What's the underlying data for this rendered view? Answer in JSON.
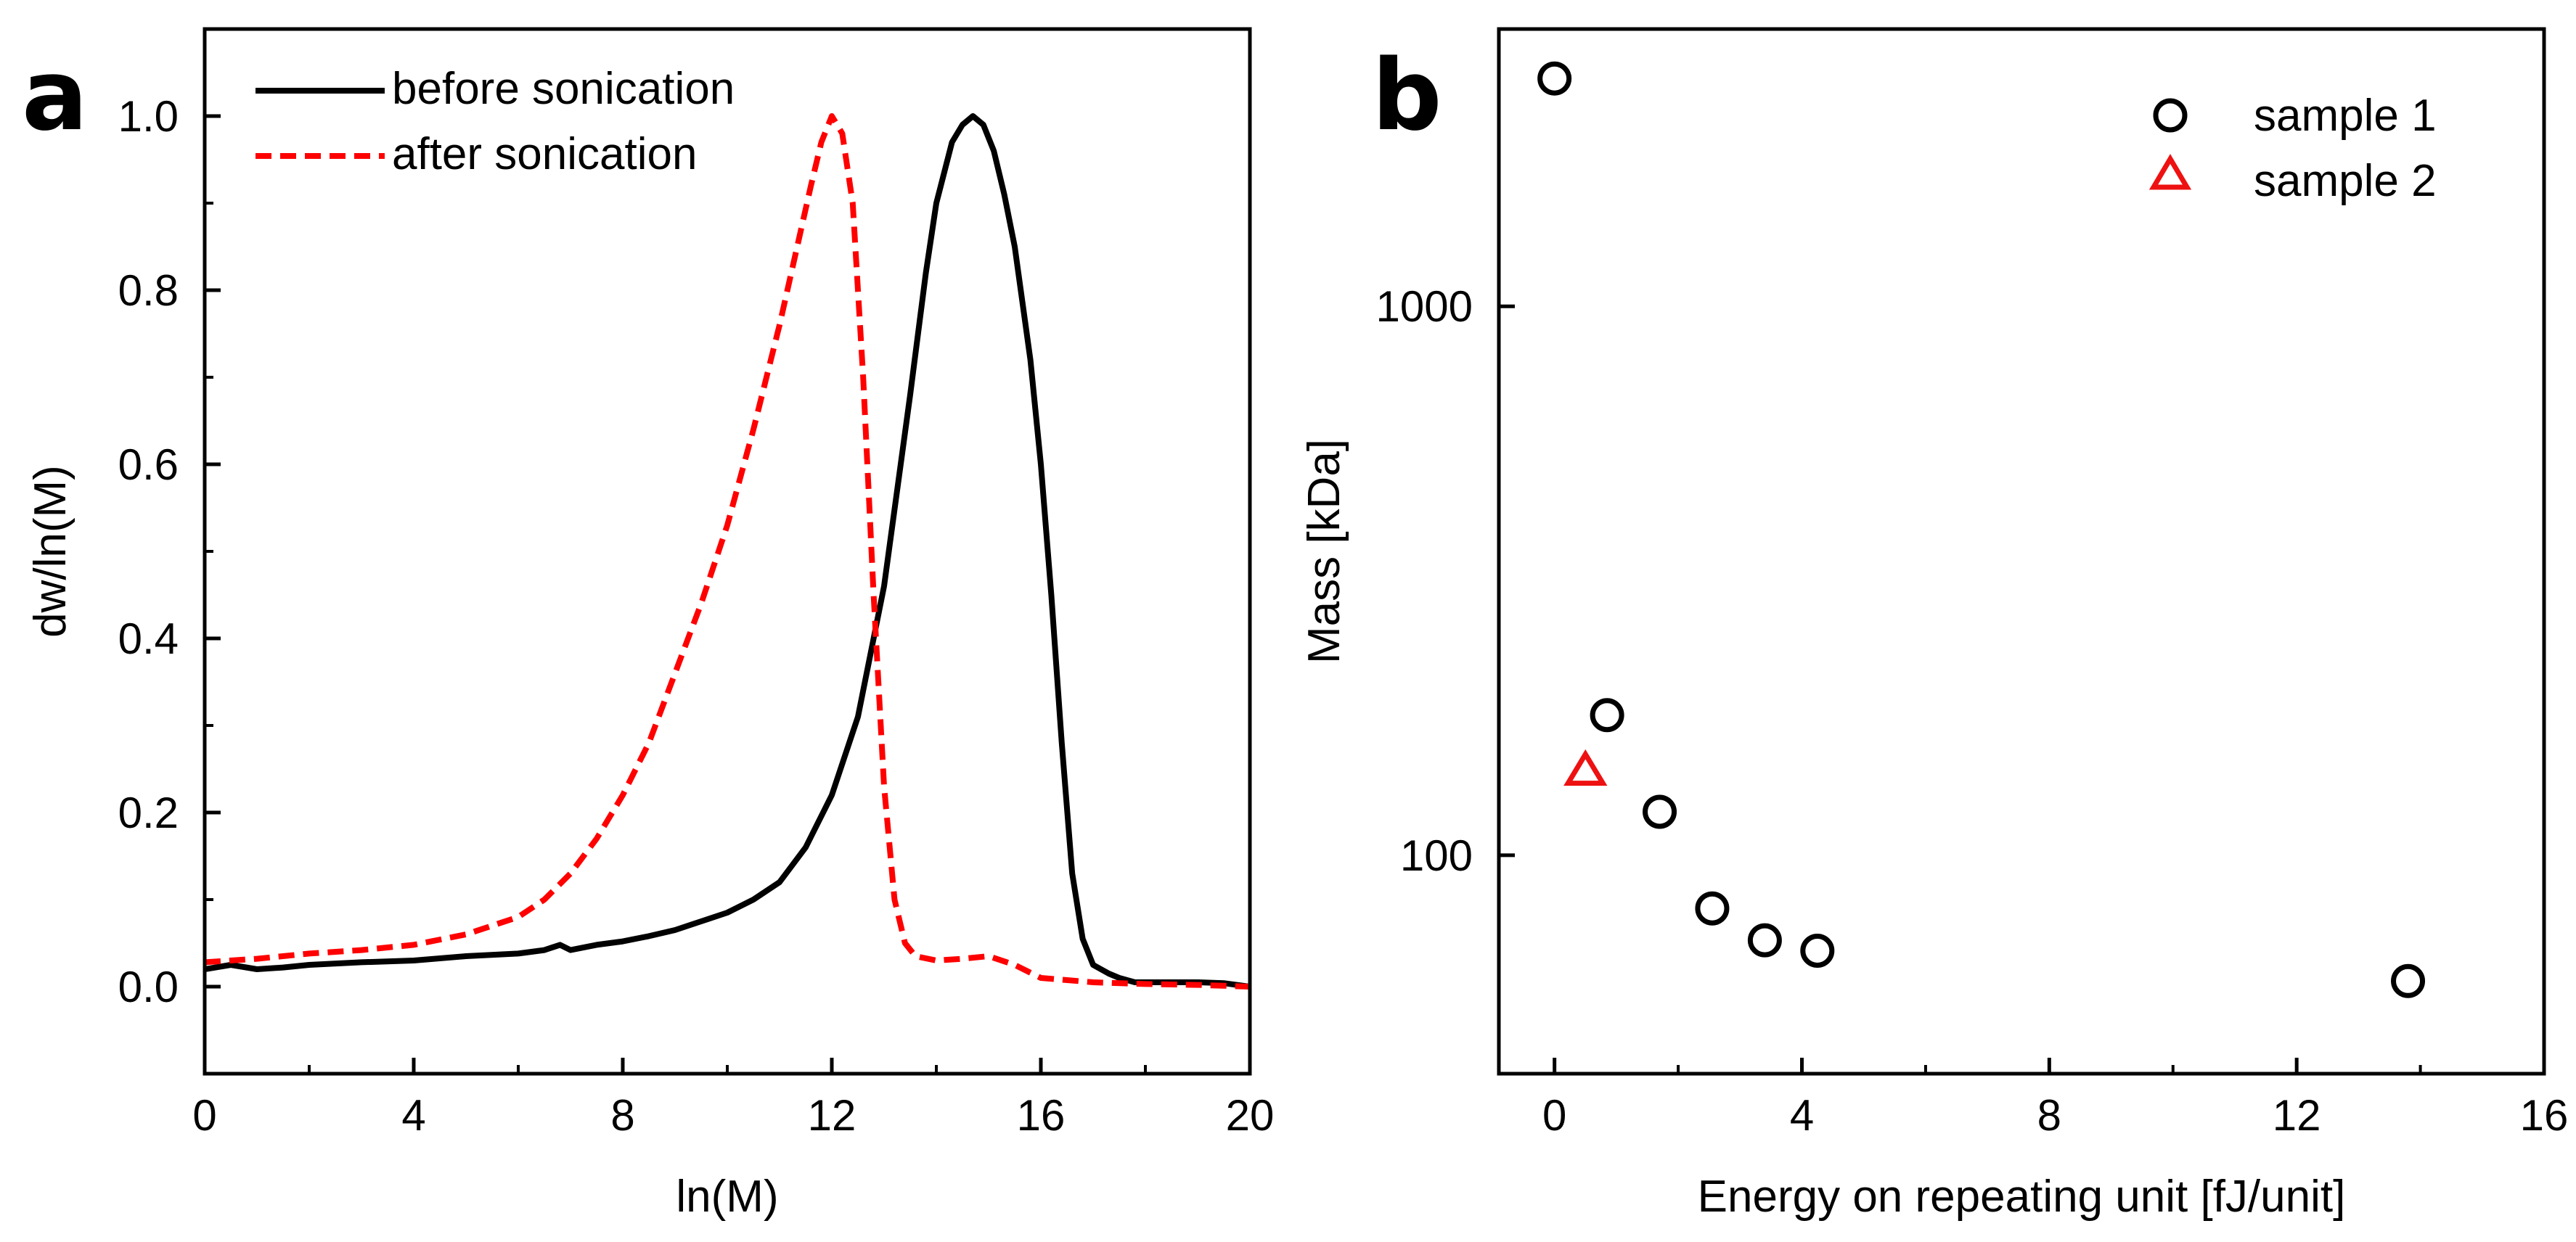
{
  "colors": {
    "axis": "#000000",
    "before": "#000000",
    "after": "#ff0000",
    "sample1": "#000000",
    "sample2": "#ee1111"
  },
  "chart_data": [
    {
      "panel": "a",
      "type": "line",
      "xlabel": "ln(M)",
      "ylabel": "dw/ln(M)",
      "xlim": [
        0,
        20
      ],
      "ylim": [
        -0.1,
        1.1
      ],
      "xticks": [
        0,
        4,
        8,
        12,
        16,
        20
      ],
      "xtick_labels": [
        "0",
        "4",
        "8",
        "12",
        "16",
        "20"
      ],
      "yticks": [
        0.0,
        0.2,
        0.4,
        0.6,
        0.8,
        1.0
      ],
      "ytick_labels": [
        "0.0",
        "0.2",
        "0.4",
        "0.6",
        "0.8",
        "1.0"
      ],
      "legend_position": "top-left",
      "series": [
        {
          "name": "before sonication",
          "style": "solid",
          "x": [
            0,
            0.5,
            1,
            1.5,
            2,
            3,
            4,
            5,
            6,
            6.5,
            6.8,
            7,
            7.5,
            8,
            8.5,
            9,
            9.5,
            10,
            10.5,
            11,
            11.5,
            12,
            12.5,
            13,
            13.5,
            13.8,
            14,
            14.3,
            14.5,
            14.7,
            14.9,
            15.1,
            15.3,
            15.5,
            15.8,
            16,
            16.2,
            16.4,
            16.6,
            16.8,
            17,
            17.3,
            17.5,
            17.8,
            18,
            18.5,
            19,
            19.5,
            20
          ],
          "y": [
            0.02,
            0.025,
            0.02,
            0.022,
            0.025,
            0.028,
            0.03,
            0.035,
            0.038,
            0.042,
            0.048,
            0.042,
            0.048,
            0.052,
            0.058,
            0.065,
            0.075,
            0.085,
            0.1,
            0.12,
            0.16,
            0.22,
            0.31,
            0.46,
            0.68,
            0.82,
            0.9,
            0.97,
            0.99,
            1.0,
            0.99,
            0.96,
            0.91,
            0.85,
            0.72,
            0.6,
            0.45,
            0.28,
            0.13,
            0.055,
            0.025,
            0.015,
            0.01,
            0.005,
            0.005,
            0.005,
            0.005,
            0.004,
            0.0
          ]
        },
        {
          "name": "after sonication",
          "style": "dashed",
          "x": [
            0,
            1,
            2,
            3,
            4,
            5,
            6,
            6.5,
            7,
            7.5,
            8,
            8.5,
            9,
            9.5,
            10,
            10.5,
            11,
            11.3,
            11.6,
            11.8,
            12,
            12.2,
            12.4,
            12.6,
            12.8,
            13,
            13.2,
            13.4,
            13.6,
            14,
            14.5,
            15,
            15.5,
            16,
            17,
            18,
            19,
            20
          ],
          "y": [
            0.028,
            0.032,
            0.038,
            0.042,
            0.048,
            0.06,
            0.08,
            0.1,
            0.13,
            0.17,
            0.22,
            0.28,
            0.36,
            0.44,
            0.53,
            0.64,
            0.76,
            0.84,
            0.92,
            0.97,
            1.0,
            0.98,
            0.9,
            0.7,
            0.45,
            0.23,
            0.1,
            0.05,
            0.035,
            0.03,
            0.032,
            0.035,
            0.025,
            0.01,
            0.005,
            0.003,
            0.002,
            0.0
          ]
        }
      ]
    },
    {
      "panel": "b",
      "type": "scatter",
      "xlabel": "Energy on repeating unit [fJ/unit]",
      "ylabel": "Mass [kDa]",
      "xlim": [
        -0.9,
        16
      ],
      "ylim": [
        40,
        3200
      ],
      "yscale": "log",
      "xticks": [
        0,
        4,
        8,
        12,
        16
      ],
      "xtick_labels": [
        "0",
        "4",
        "8",
        "12",
        "16"
      ],
      "yticks": [
        100,
        1000
      ],
      "ytick_labels": [
        "100",
        "1000"
      ],
      "legend_position": "top-right",
      "series": [
        {
          "name": "sample 1",
          "marker": "circle",
          "x": [
            0,
            0.85,
            1.7,
            2.55,
            3.4,
            4.25,
            13.8
          ],
          "y": [
            2600,
            180,
            120,
            80,
            70,
            67,
            59
          ]
        },
        {
          "name": "sample 2",
          "marker": "triangle",
          "x": [
            0.5
          ],
          "y": [
            142
          ]
        }
      ]
    }
  ],
  "panels": {
    "a": "a",
    "b": "b"
  }
}
